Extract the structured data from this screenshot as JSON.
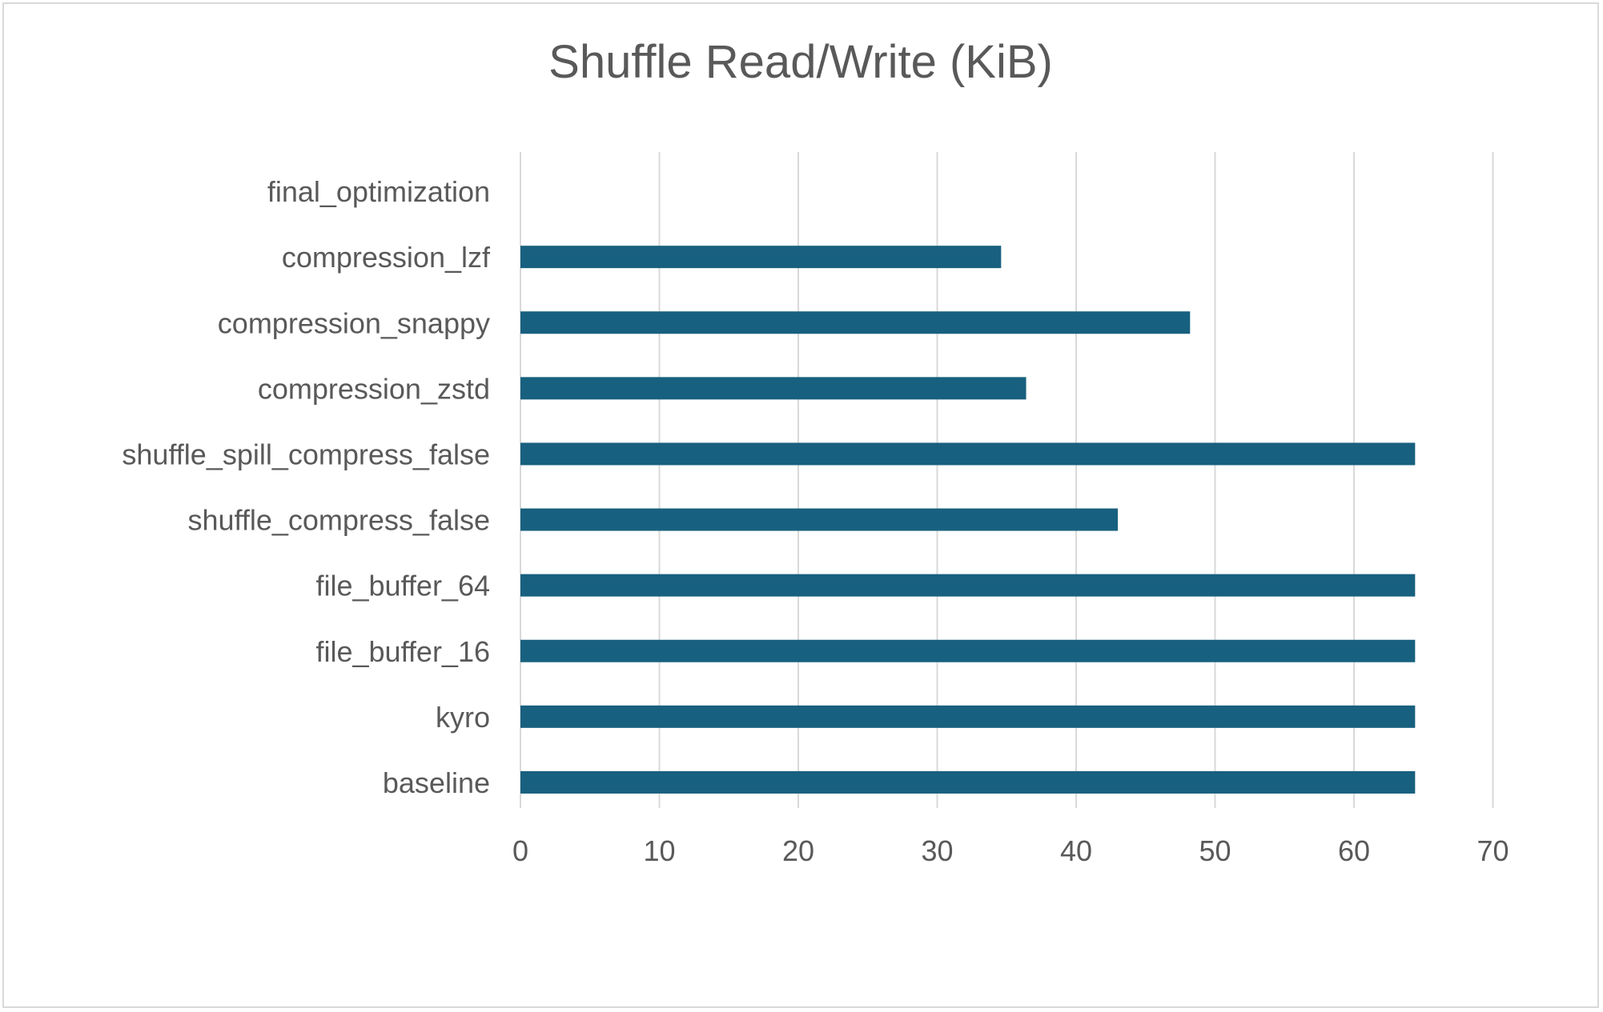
{
  "chart_data": {
    "type": "bar",
    "orientation": "horizontal",
    "title": "Shuffle Read/Write (KiB)",
    "xlabel": "",
    "ylabel": "",
    "categories": [
      "baseline",
      "kyro",
      "file_buffer_16",
      "file_buffer_64",
      "shuffle_compress_false",
      "shuffle_spill_compress_false",
      "compression_zstd",
      "compression_snappy",
      "compression_lzf",
      "final_optimization"
    ],
    "values": [
      64.4,
      64.4,
      64.4,
      64.4,
      43.0,
      64.4,
      36.4,
      48.2,
      34.6,
      0
    ],
    "xlim": [
      0,
      70
    ],
    "xticks": [
      0,
      10,
      20,
      30,
      40,
      50,
      60,
      70
    ],
    "grid": true,
    "legend": "none",
    "bar_color": "#18607f",
    "grid_color": "#d9d9d9",
    "text_color": "#595959"
  }
}
